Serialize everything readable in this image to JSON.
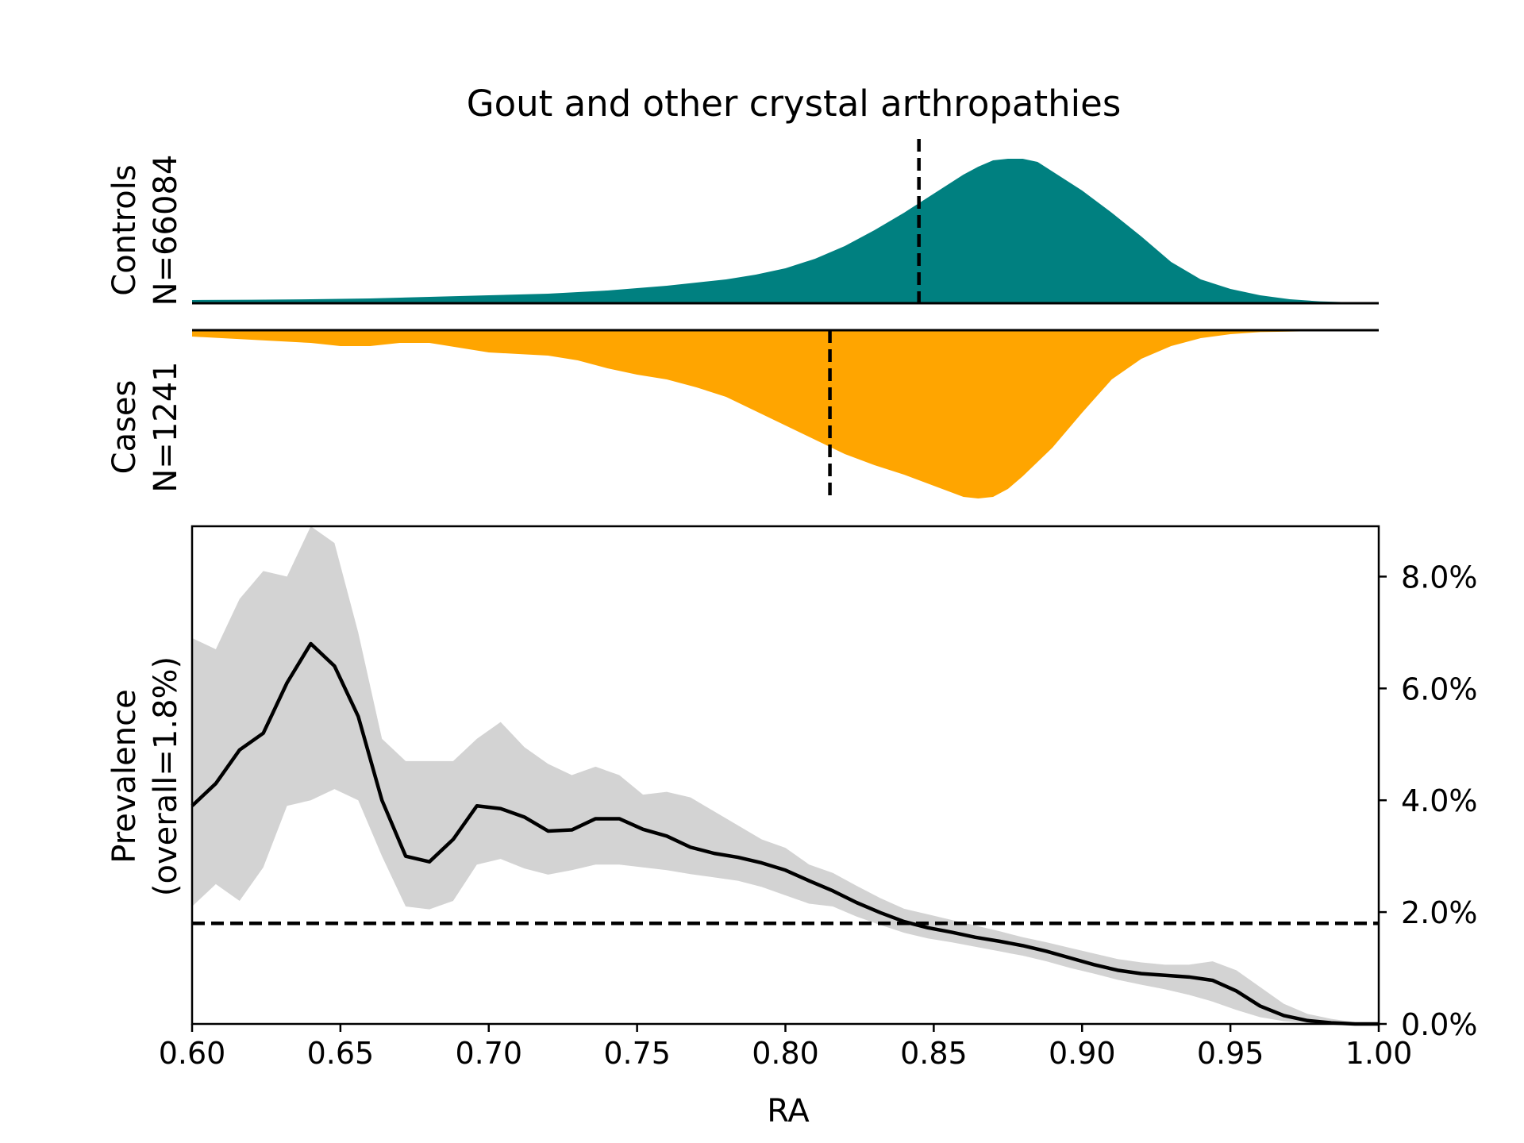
{
  "chart_data": [
    {
      "panel": "controls-density",
      "type": "area",
      "title": "Gout and other crystal arthropathies",
      "ylabel_lines": [
        "Controls",
        "N=66084"
      ],
      "color": "#008080",
      "x": [
        0.6,
        0.62,
        0.64,
        0.66,
        0.68,
        0.7,
        0.72,
        0.74,
        0.76,
        0.77,
        0.78,
        0.79,
        0.8,
        0.81,
        0.82,
        0.83,
        0.84,
        0.85,
        0.86,
        0.865,
        0.87,
        0.875,
        0.88,
        0.885,
        0.89,
        0.9,
        0.91,
        0.92,
        0.93,
        0.94,
        0.95,
        0.96,
        0.97,
        0.98,
        1.0
      ],
      "y": [
        0.02,
        0.022,
        0.025,
        0.03,
        0.04,
        0.05,
        0.06,
        0.08,
        0.11,
        0.13,
        0.15,
        0.18,
        0.22,
        0.28,
        0.36,
        0.46,
        0.57,
        0.69,
        0.81,
        0.86,
        0.9,
        0.91,
        0.91,
        0.89,
        0.83,
        0.71,
        0.57,
        0.42,
        0.26,
        0.15,
        0.09,
        0.05,
        0.025,
        0.012,
        0.0
      ],
      "mean_line": 0.845,
      "xlim": [
        0.6,
        1.0
      ]
    },
    {
      "panel": "cases-density",
      "type": "area",
      "ylabel_lines": [
        "Cases",
        "N=1241"
      ],
      "color": "#FFA500",
      "x": [
        0.6,
        0.61,
        0.62,
        0.63,
        0.64,
        0.65,
        0.66,
        0.67,
        0.68,
        0.69,
        0.7,
        0.71,
        0.72,
        0.73,
        0.74,
        0.75,
        0.76,
        0.77,
        0.78,
        0.79,
        0.8,
        0.81,
        0.82,
        0.83,
        0.84,
        0.85,
        0.86,
        0.865,
        0.87,
        0.875,
        0.88,
        0.89,
        0.9,
        0.91,
        0.92,
        0.93,
        0.94,
        0.95,
        0.96,
        0.98,
        1.0
      ],
      "y": [
        0.04,
        0.05,
        0.06,
        0.07,
        0.08,
        0.1,
        0.1,
        0.08,
        0.08,
        0.11,
        0.14,
        0.15,
        0.16,
        0.19,
        0.24,
        0.28,
        0.31,
        0.36,
        0.42,
        0.51,
        0.6,
        0.69,
        0.78,
        0.85,
        0.91,
        0.98,
        1.05,
        1.06,
        1.05,
        1.0,
        0.92,
        0.74,
        0.52,
        0.31,
        0.18,
        0.1,
        0.05,
        0.025,
        0.012,
        0.005,
        0.0
      ],
      "mean_line": 0.815,
      "xlim": [
        0.6,
        1.0
      ]
    },
    {
      "panel": "prevalence",
      "type": "line",
      "xlabel": "RA",
      "ylabel_lines": [
        "Prevalence",
        "(overall=1.8%)"
      ],
      "x": [
        0.6,
        0.608,
        0.616,
        0.624,
        0.632,
        0.64,
        0.648,
        0.656,
        0.664,
        0.672,
        0.68,
        0.688,
        0.696,
        0.704,
        0.712,
        0.72,
        0.728,
        0.736,
        0.744,
        0.752,
        0.76,
        0.768,
        0.776,
        0.784,
        0.792,
        0.8,
        0.808,
        0.816,
        0.824,
        0.832,
        0.84,
        0.848,
        0.856,
        0.864,
        0.872,
        0.88,
        0.888,
        0.896,
        0.904,
        0.912,
        0.92,
        0.928,
        0.936,
        0.944,
        0.952,
        0.96,
        0.968,
        0.976,
        0.984,
        0.992,
        1.0
      ],
      "values": [
        3.9,
        4.3,
        4.9,
        5.2,
        6.1,
        6.8,
        6.4,
        5.5,
        4.0,
        3.0,
        2.9,
        3.3,
        3.9,
        3.85,
        3.7,
        3.45,
        3.47,
        3.67,
        3.67,
        3.48,
        3.36,
        3.16,
        3.05,
        2.98,
        2.88,
        2.75,
        2.56,
        2.38,
        2.17,
        1.99,
        1.83,
        1.72,
        1.64,
        1.55,
        1.48,
        1.4,
        1.3,
        1.18,
        1.06,
        0.96,
        0.9,
        0.87,
        0.84,
        0.78,
        0.59,
        0.32,
        0.15,
        0.06,
        0.02,
        0.0,
        0.0
      ],
      "ci_upper": [
        6.9,
        6.7,
        7.6,
        8.1,
        8.0,
        8.9,
        8.6,
        7.0,
        5.1,
        4.7,
        4.7,
        4.7,
        5.1,
        5.4,
        4.95,
        4.65,
        4.45,
        4.6,
        4.45,
        4.1,
        4.15,
        4.05,
        3.8,
        3.55,
        3.3,
        3.15,
        2.85,
        2.7,
        2.47,
        2.25,
        2.06,
        1.96,
        1.86,
        1.76,
        1.66,
        1.55,
        1.46,
        1.36,
        1.26,
        1.16,
        1.1,
        1.06,
        1.06,
        1.12,
        0.96,
        0.66,
        0.36,
        0.18,
        0.09,
        0.03,
        0.0
      ],
      "ci_lower": [
        2.1,
        2.5,
        2.2,
        2.8,
        3.9,
        4.0,
        4.2,
        4.0,
        3.0,
        2.1,
        2.05,
        2.2,
        2.85,
        2.95,
        2.78,
        2.67,
        2.75,
        2.85,
        2.85,
        2.8,
        2.75,
        2.68,
        2.62,
        2.56,
        2.45,
        2.3,
        2.15,
        2.1,
        1.92,
        1.77,
        1.63,
        1.53,
        1.46,
        1.38,
        1.3,
        1.22,
        1.12,
        1.0,
        0.9,
        0.79,
        0.7,
        0.62,
        0.52,
        0.4,
        0.25,
        0.12,
        0.05,
        0.02,
        0.0,
        0.0,
        0.0
      ],
      "overall_line": 1.8,
      "xlim": [
        0.6,
        1.0
      ],
      "ylim": [
        0.0,
        8.9
      ],
      "x_ticks": [
        "0.60",
        "0.65",
        "0.70",
        "0.75",
        "0.80",
        "0.85",
        "0.90",
        "0.95",
        "1.00"
      ],
      "y_ticks": [
        "0.0%",
        "2.0%",
        "4.0%",
        "6.0%",
        "8.0%"
      ],
      "line_color": "#000000",
      "band_color": "#D3D3D3"
    }
  ]
}
